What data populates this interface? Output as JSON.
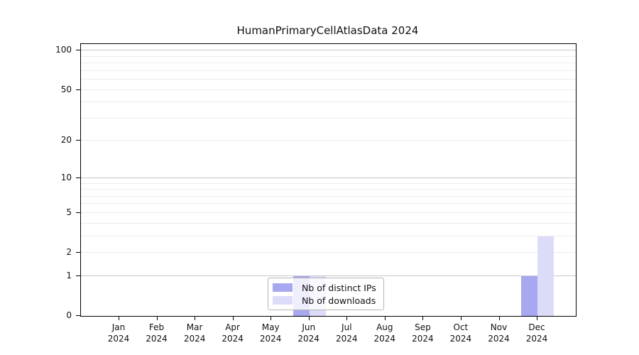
{
  "title": "HumanPrimaryCellAtlasData 2024",
  "chart_data": {
    "type": "bar",
    "title": "HumanPrimaryCellAtlasData 2024",
    "categories": [
      "Jan",
      "Feb",
      "Mar",
      "Apr",
      "May",
      "Jun",
      "Jul",
      "Aug",
      "Sep",
      "Oct",
      "Nov",
      "Dec"
    ],
    "year_label": "2024",
    "series": [
      {
        "name": "Nb of distinct IPs",
        "color": "#a8a8f0",
        "values": [
          0,
          0,
          0,
          0,
          0,
          1,
          0,
          0,
          0,
          0,
          0,
          1
        ]
      },
      {
        "name": "Nb of downloads",
        "color": "#dcdcf8",
        "values": [
          0,
          0,
          0,
          0,
          0,
          1,
          0,
          0,
          0,
          0,
          0,
          3
        ]
      }
    ],
    "xlabel": "",
    "ylabel": "",
    "yscale": "log1p",
    "ylim": [
      0,
      112
    ],
    "ytick_values": [
      0,
      1,
      2,
      5,
      10,
      20,
      50,
      100
    ],
    "gridlines": {
      "major": [
        1,
        10,
        100
      ],
      "minor": [
        2,
        3,
        4,
        5,
        6,
        7,
        8,
        9,
        20,
        30,
        40,
        50,
        60,
        70,
        80,
        90
      ]
    },
    "grid": true,
    "legend_position": "bottom-center"
  },
  "colors": {
    "distinct_ips": "#a8a8f0",
    "downloads": "#dcdcf8",
    "grid_major": "#c8c8c8",
    "grid_minor": "#ececec",
    "spine": "#000000"
  }
}
